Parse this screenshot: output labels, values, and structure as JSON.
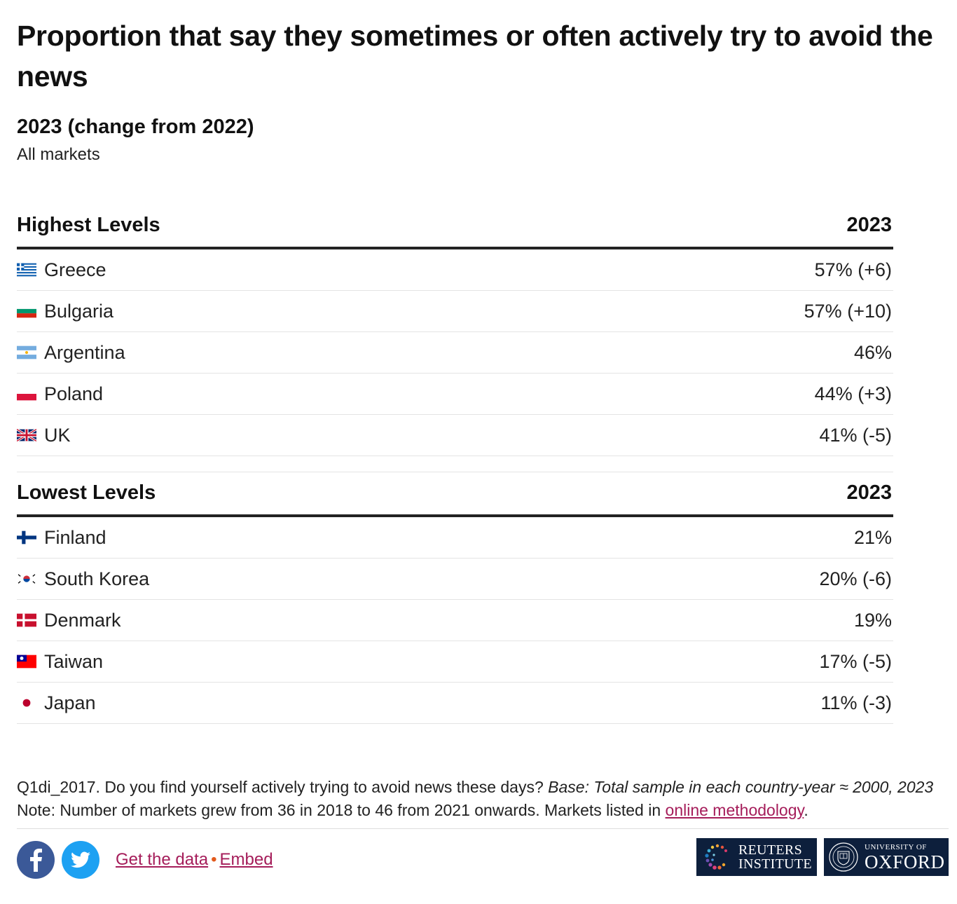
{
  "title": "Proportion that say they sometimes or often actively try to avoid the news",
  "subtitle": "2023 (change from 2022)",
  "market": "All markets",
  "chart_data": {
    "type": "table",
    "sections": [
      {
        "heading": "Highest Levels",
        "year_label": "2023",
        "rows": [
          {
            "country": "Greece",
            "value": "57%",
            "change": "(+6)",
            "flag": "greece-flag-icon"
          },
          {
            "country": "Bulgaria",
            "value": "57%",
            "change": "(+10)",
            "flag": "bulgaria-flag-icon"
          },
          {
            "country": "Argentina",
            "value": "46%",
            "change": "",
            "flag": "argentina-flag-icon"
          },
          {
            "country": "Poland",
            "value": "44%",
            "change": "(+3)",
            "flag": "poland-flag-icon"
          },
          {
            "country": "UK",
            "value": "41%",
            "change": "(-5)",
            "flag": "uk-flag-icon"
          }
        ]
      },
      {
        "heading": "Lowest Levels",
        "year_label": "2023",
        "rows": [
          {
            "country": "Finland",
            "value": "21%",
            "change": "",
            "flag": "finland-flag-icon"
          },
          {
            "country": "South Korea",
            "value": "20%",
            "change": "(-6)",
            "flag": "south-korea-flag-icon"
          },
          {
            "country": "Denmark",
            "value": "19%",
            "change": "",
            "flag": "denmark-flag-icon"
          },
          {
            "country": "Taiwan",
            "value": "17%",
            "change": "(-5)",
            "flag": "taiwan-flag-icon"
          },
          {
            "country": "Japan",
            "value": "11%",
            "change": "(-3)",
            "flag": "japan-flag-icon"
          }
        ]
      }
    ]
  },
  "note": {
    "code": "Q1di_2017.",
    "question": " Do you find yourself actively trying to avoid news these days? ",
    "base": "Base: Total sample in each country-year ≈ 2000, 2023",
    "text": " Note: Number of markets grew from 36 in 2018 to 46 from 2021 onwards. Markets listed in ",
    "link": "online methodology",
    "end": "."
  },
  "footer": {
    "get_data": "Get the data",
    "separator": "•",
    "embed": "Embed",
    "reuters_line1": "REUTERS",
    "reuters_line2": "INSTITUTE",
    "oxford_line1": "UNIVERSITY OF",
    "oxford_line2": "OXFORD"
  },
  "colors": {
    "link": "#a51d5a",
    "facebook": "#3b5998",
    "twitter": "#1da1f2",
    "logo_bg": "#0d1f3c"
  }
}
